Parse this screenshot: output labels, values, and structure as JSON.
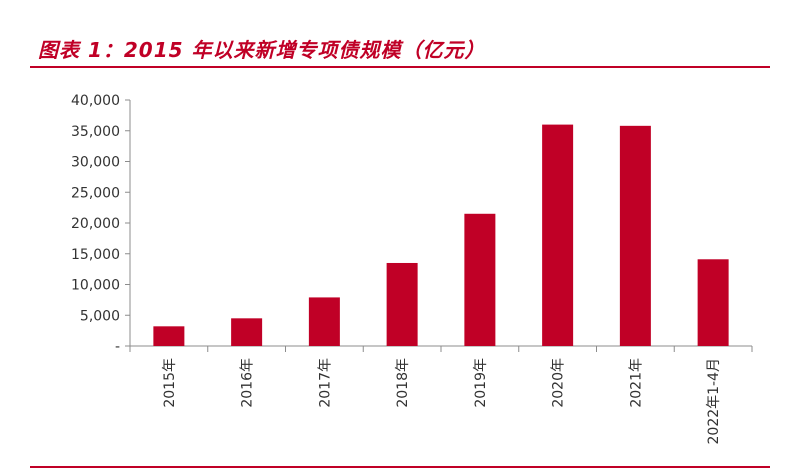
{
  "chart_data": {
    "type": "bar",
    "title": "图表 1：2015 年以来新增专项债规模（亿元）",
    "categories": [
      "2015年",
      "2016年",
      "2017年",
      "2018年",
      "2019年",
      "2020年",
      "2021年",
      "2022年1-4月"
    ],
    "values": [
      3200,
      4500,
      7900,
      13500,
      21500,
      36000,
      35800,
      14100
    ],
    "ylim": [
      0,
      40000
    ],
    "yticks": [
      0,
      5000,
      10000,
      15000,
      20000,
      25000,
      30000,
      35000,
      40000
    ],
    "ytick_labels": [
      "-",
      "5,000",
      "10,000",
      "15,000",
      "20,000",
      "25,000",
      "30,000",
      "35,000",
      "40,000"
    ],
    "xlabel": "",
    "ylabel": "",
    "grid": false,
    "bar_color": "#c00026"
  }
}
